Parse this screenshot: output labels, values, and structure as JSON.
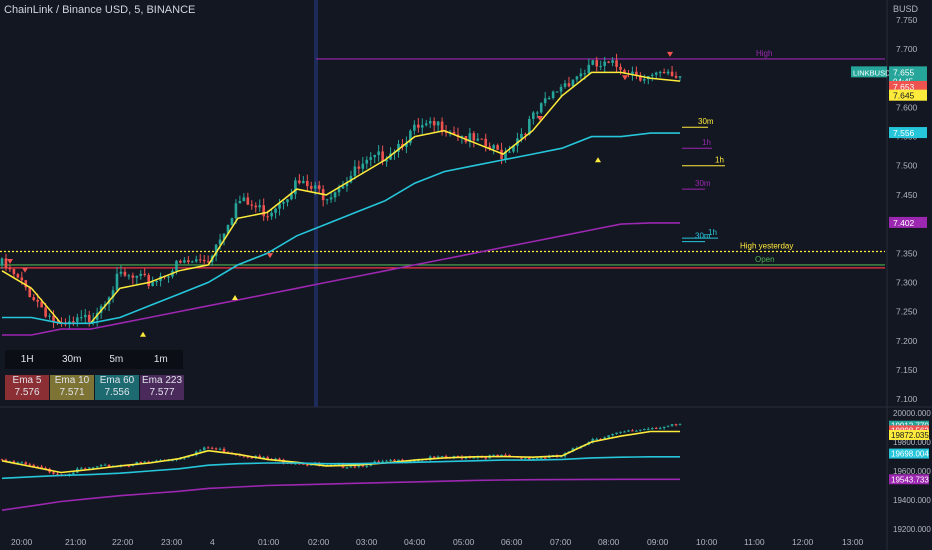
{
  "header": {
    "title": "ChainLink / Binance USD, 5, BINANCE",
    "currency": "BUSD"
  },
  "colors": {
    "background": "#131722",
    "up": "#26a69a",
    "down": "#ef5350",
    "ema5": "#ffeb3b",
    "ema60": "#26c6da",
    "ema223": "#9c27b0",
    "high_line": "#9c27b0",
    "yesterday": "#ffeb3b",
    "open_line": "#4caf50",
    "red_line": "#f23645"
  },
  "price_axis": {
    "ticks": [
      "7.750",
      "7.700",
      "7.650",
      "7.600",
      "7.550",
      "7.500",
      "7.450",
      "7.400",
      "7.350",
      "7.300",
      "7.250",
      "7.200",
      "7.150",
      "7.100"
    ]
  },
  "price_tags": [
    {
      "label": "LINKBUSD",
      "value": "7.655",
      "sub": "04:45",
      "color": "#26a69a",
      "price": 7.66
    },
    {
      "value": "7.653",
      "color": "#ef5350",
      "price": 7.635
    },
    {
      "value": "7.645",
      "color": "#ffeb3b",
      "price": 7.62
    },
    {
      "value": "7.556",
      "color": "#26c6da",
      "price": 7.556
    },
    {
      "value": "7.402",
      "color": "#9c27b0",
      "price": 7.402
    }
  ],
  "levels": [
    {
      "label": "High",
      "price": 7.683,
      "color": "#9c27b0"
    },
    {
      "label": "High yesterday",
      "price": 7.353,
      "color": "#ffeb3b"
    },
    {
      "label": "Open",
      "price": 7.33,
      "color": "#4caf50"
    },
    {
      "label": "",
      "price": 7.325,
      "color": "#f23645"
    }
  ],
  "tf_levels": [
    {
      "label": "30m",
      "price": 7.566,
      "color": "#ffeb3b"
    },
    {
      "label": "1h",
      "price": 7.53,
      "color": "#9c27b0"
    },
    {
      "label": "1h",
      "price": 7.5,
      "color": "#ffeb3b"
    },
    {
      "label": "30m",
      "price": 7.46,
      "color": "#9c27b0"
    },
    {
      "label": "1h",
      "price": 7.376,
      "color": "#26c6da"
    },
    {
      "label": "30m",
      "price": 7.37,
      "color": "#26c6da"
    }
  ],
  "timeframes": [
    "1H",
    "30m",
    "5m",
    "1m"
  ],
  "ema_panel": [
    {
      "name": "Ema 5",
      "value": "7.576",
      "color": "#8b2f34"
    },
    {
      "name": "Ema 10",
      "value": "7.571",
      "color": "#7d7334"
    },
    {
      "name": "Ema 60",
      "value": "7.556",
      "color": "#1d6b70"
    },
    {
      "name": "Ema 223",
      "value": "7.577",
      "color": "#4a2a5a"
    }
  ],
  "lower_axis": {
    "ticks": [
      "20000.000",
      "19800.000",
      "19600.000",
      "19400.000",
      "19200.000"
    ]
  },
  "lower_tags": [
    {
      "value": "19912.770",
      "color": "#26a69a",
      "price": 19912
    },
    {
      "value": "19898.562",
      "color": "#ef5350",
      "price": 19880
    },
    {
      "value": "19872.035",
      "color": "#ffeb3b",
      "price": 19848
    },
    {
      "value": "19698.004",
      "color": "#26c6da",
      "price": 19720
    },
    {
      "value": "19543.733",
      "color": "#9c27b0",
      "price": 19543
    }
  ],
  "time_axis": {
    "ticks": [
      "20:00",
      "21:00",
      "22:00",
      "23:00",
      "4",
      "01:00",
      "02:00",
      "03:00",
      "04:00",
      "05:00",
      "06:00",
      "07:00",
      "08:00",
      "09:00",
      "10:00",
      "11:00",
      "12:00",
      "13:00"
    ]
  },
  "chart_data": {
    "type": "candlestick",
    "interval": "5m",
    "x": [
      "19:35",
      "20:00",
      "21:00",
      "22:00",
      "23:00",
      "00:00",
      "01:00",
      "02:00",
      "02:15",
      "03:00",
      "03:30",
      "04:00",
      "04:30",
      "05:00",
      "05:30",
      "06:00",
      "06:30",
      "07:00",
      "07:30",
      "08:00",
      "08:30",
      "09:00",
      "09:20",
      "09:30"
    ],
    "close": [
      7.33,
      7.28,
      7.22,
      7.24,
      7.31,
      7.3,
      7.33,
      7.34,
      7.44,
      7.42,
      7.47,
      7.45,
      7.49,
      7.52,
      7.56,
      7.57,
      7.54,
      7.52,
      7.58,
      7.64,
      7.67,
      7.67,
      7.65,
      7.655
    ],
    "series": [
      {
        "name": "Ema 5",
        "values": [
          7.32,
          7.29,
          7.23,
          7.23,
          7.29,
          7.3,
          7.32,
          7.33,
          7.41,
          7.42,
          7.46,
          7.45,
          7.48,
          7.51,
          7.55,
          7.56,
          7.54,
          7.52,
          7.56,
          7.62,
          7.66,
          7.66,
          7.65,
          7.645
        ]
      },
      {
        "name": "Ema 60",
        "values": [
          7.24,
          7.24,
          7.23,
          7.23,
          7.24,
          7.26,
          7.28,
          7.3,
          7.33,
          7.35,
          7.38,
          7.4,
          7.42,
          7.44,
          7.47,
          7.49,
          7.5,
          7.51,
          7.52,
          7.53,
          7.55,
          7.55,
          7.556,
          7.556
        ]
      },
      {
        "name": "Ema 223",
        "values": [
          7.21,
          7.21,
          7.22,
          7.22,
          7.23,
          7.24,
          7.25,
          7.26,
          7.27,
          7.28,
          7.29,
          7.3,
          7.31,
          7.32,
          7.33,
          7.34,
          7.35,
          7.36,
          7.37,
          7.38,
          7.39,
          7.4,
          7.402,
          7.402
        ]
      }
    ],
    "ylim": [
      7.09,
      7.76
    ],
    "lower": {
      "close": [
        19680,
        19630,
        19580,
        19620,
        19640,
        19660,
        19690,
        19760,
        19720,
        19680,
        19660,
        19630,
        19640,
        19660,
        19680,
        19690,
        19700,
        19700,
        19690,
        19700,
        19820,
        19860,
        19900,
        19912
      ],
      "series": [
        {
          "name": "Ema 5",
          "values": [
            19670,
            19630,
            19590,
            19610,
            19635,
            19655,
            19685,
            19740,
            19715,
            19680,
            19660,
            19635,
            19640,
            19655,
            19675,
            19690,
            19698,
            19700,
            19695,
            19705,
            19800,
            19840,
            19872,
            19872
          ]
        },
        {
          "name": "Ema 60",
          "values": [
            19550,
            19560,
            19570,
            19575,
            19585,
            19600,
            19615,
            19640,
            19650,
            19655,
            19655,
            19650,
            19650,
            19655,
            19660,
            19665,
            19670,
            19675,
            19675,
            19680,
            19690,
            19695,
            19698,
            19698
          ]
        },
        {
          "name": "Ema 223",
          "values": [
            19330,
            19360,
            19390,
            19410,
            19430,
            19445,
            19460,
            19480,
            19490,
            19500,
            19505,
            19510,
            19515,
            19520,
            19525,
            19530,
            19535,
            19538,
            19540,
            19541,
            19542,
            19543,
            19543,
            19543
          ]
        }
      ],
      "ylim": [
        19180,
        20020
      ]
    }
  }
}
